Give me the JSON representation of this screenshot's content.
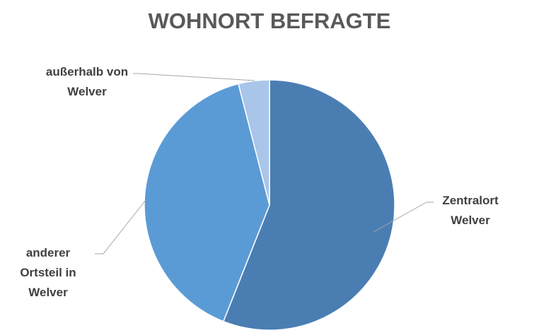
{
  "chart_data": {
    "type": "pie",
    "title": "WOHNORT BEFRAGTE",
    "categories": [
      "Zentralort Welver",
      "anderer Ortsteil in Welver",
      "außerhalb von Welver"
    ],
    "values": [
      56,
      40,
      4
    ],
    "colors": [
      "#4a7eb3",
      "#5b9bd5",
      "#a9c5e9"
    ]
  }
}
